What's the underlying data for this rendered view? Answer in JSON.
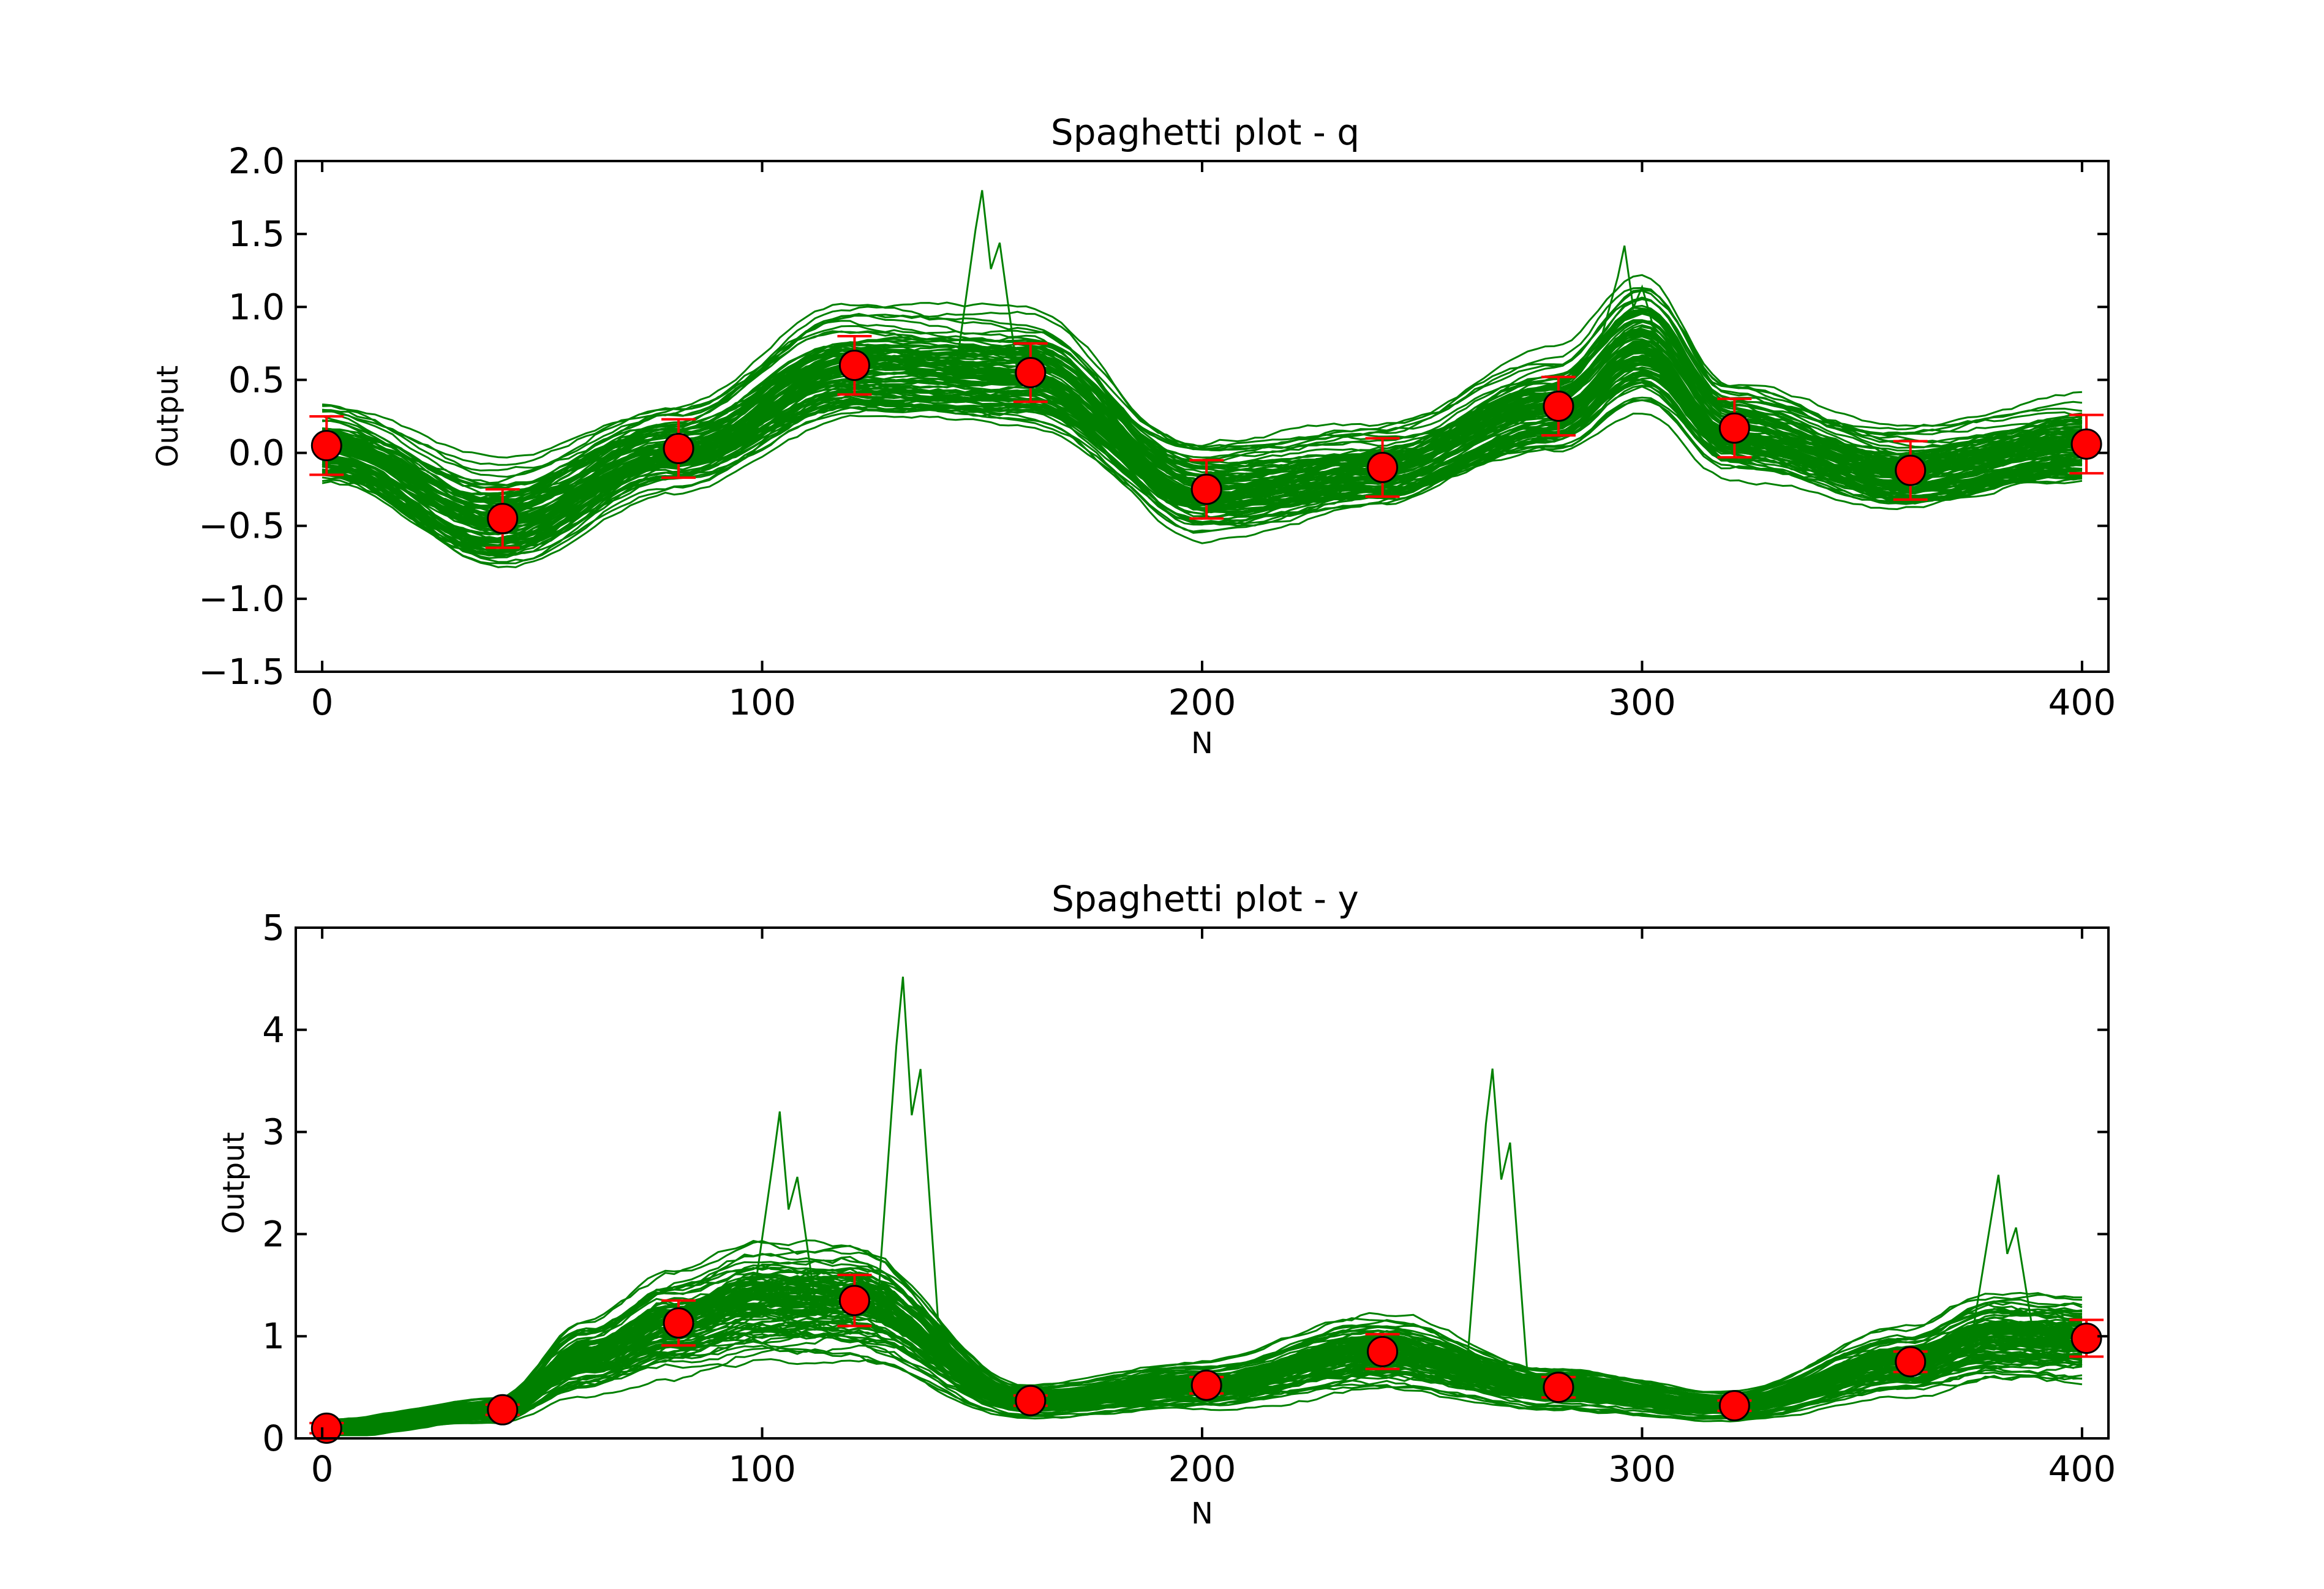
{
  "chart_data": [
    {
      "type": "line",
      "title": "Spaghetti plot - q",
      "xlabel": "N",
      "ylabel": "Output",
      "xlim": [
        -6,
        406
      ],
      "ylim": [
        -1.5,
        2.0
      ],
      "xticks": [
        0,
        100,
        200,
        300,
        400
      ],
      "yticks": [
        -1.5,
        -1.0,
        -0.5,
        0.0,
        0.5,
        1.0,
        1.5,
        2.0
      ],
      "ytick_labels": [
        "−1.5",
        "−1.0",
        "−0.5",
        "0.0",
        "0.5",
        "1.0",
        "1.5",
        "2.0"
      ],
      "grid": false,
      "spaghetti": {
        "color": "#008000",
        "n_realizations": 100,
        "mean_x": [
          0,
          40,
          80,
          120,
          160,
          200,
          240,
          280,
          300,
          320,
          360,
          400
        ],
        "mean_y": [
          0.05,
          -0.45,
          0.03,
          0.6,
          0.55,
          -0.25,
          -0.1,
          0.32,
          0.75,
          0.17,
          -0.12,
          0.06
        ],
        "spread": 0.2,
        "peaks": [
          {
            "x": 150,
            "y": 1.8
          },
          {
            "x": 296,
            "y": 1.42
          }
        ]
      },
      "series": [
        {
          "marker": "circle",
          "color": "#ff0000",
          "x": [
            1,
            41,
            81,
            121,
            161,
            201,
            241,
            281,
            321,
            361,
            401
          ],
          "y": [
            0.05,
            -0.45,
            0.03,
            0.6,
            0.55,
            -0.25,
            -0.1,
            0.32,
            0.17,
            -0.12,
            0.06
          ],
          "err": [
            0.2,
            0.2,
            0.2,
            0.2,
            0.2,
            0.2,
            0.2,
            0.2,
            0.2,
            0.2,
            0.2
          ]
        }
      ]
    },
    {
      "type": "line",
      "title": "Spaghetti plot - y",
      "xlabel": "N",
      "ylabel": "Output",
      "xlim": [
        -6,
        406
      ],
      "ylim": [
        0,
        5
      ],
      "xticks": [
        0,
        100,
        200,
        300,
        400
      ],
      "yticks": [
        0,
        1,
        2,
        3,
        4,
        5
      ],
      "ytick_labels": [
        "0",
        "1",
        "2",
        "3",
        "4",
        "5"
      ],
      "grid": false,
      "spaghetti": {
        "color": "#008000",
        "n_realizations": 100,
        "mean_x": [
          0,
          40,
          60,
          80,
          100,
          120,
          160,
          200,
          240,
          280,
          320,
          360,
          380,
          400
        ],
        "mean_y": [
          0.1,
          0.28,
          0.8,
          1.13,
          1.35,
          1.35,
          0.37,
          0.52,
          0.85,
          0.5,
          0.32,
          0.75,
          1.0,
          0.98
        ],
        "spread_ratio": 0.35,
        "peaks": [
          {
            "x": 132,
            "y": 4.52
          },
          {
            "x": 266,
            "y": 3.62
          },
          {
            "x": 104,
            "y": 3.2
          },
          {
            "x": 381,
            "y": 2.58
          }
        ]
      },
      "series": [
        {
          "marker": "circle",
          "color": "#ff0000",
          "x": [
            1,
            41,
            81,
            121,
            161,
            201,
            241,
            281,
            321,
            361,
            401
          ],
          "y": [
            0.1,
            0.28,
            1.13,
            1.35,
            0.37,
            0.52,
            0.85,
            0.5,
            0.32,
            0.75,
            0.98
          ],
          "err": [
            0.05,
            0.05,
            0.22,
            0.25,
            0.05,
            0.08,
            0.17,
            0.1,
            0.05,
            0.1,
            0.18
          ]
        }
      ]
    }
  ]
}
